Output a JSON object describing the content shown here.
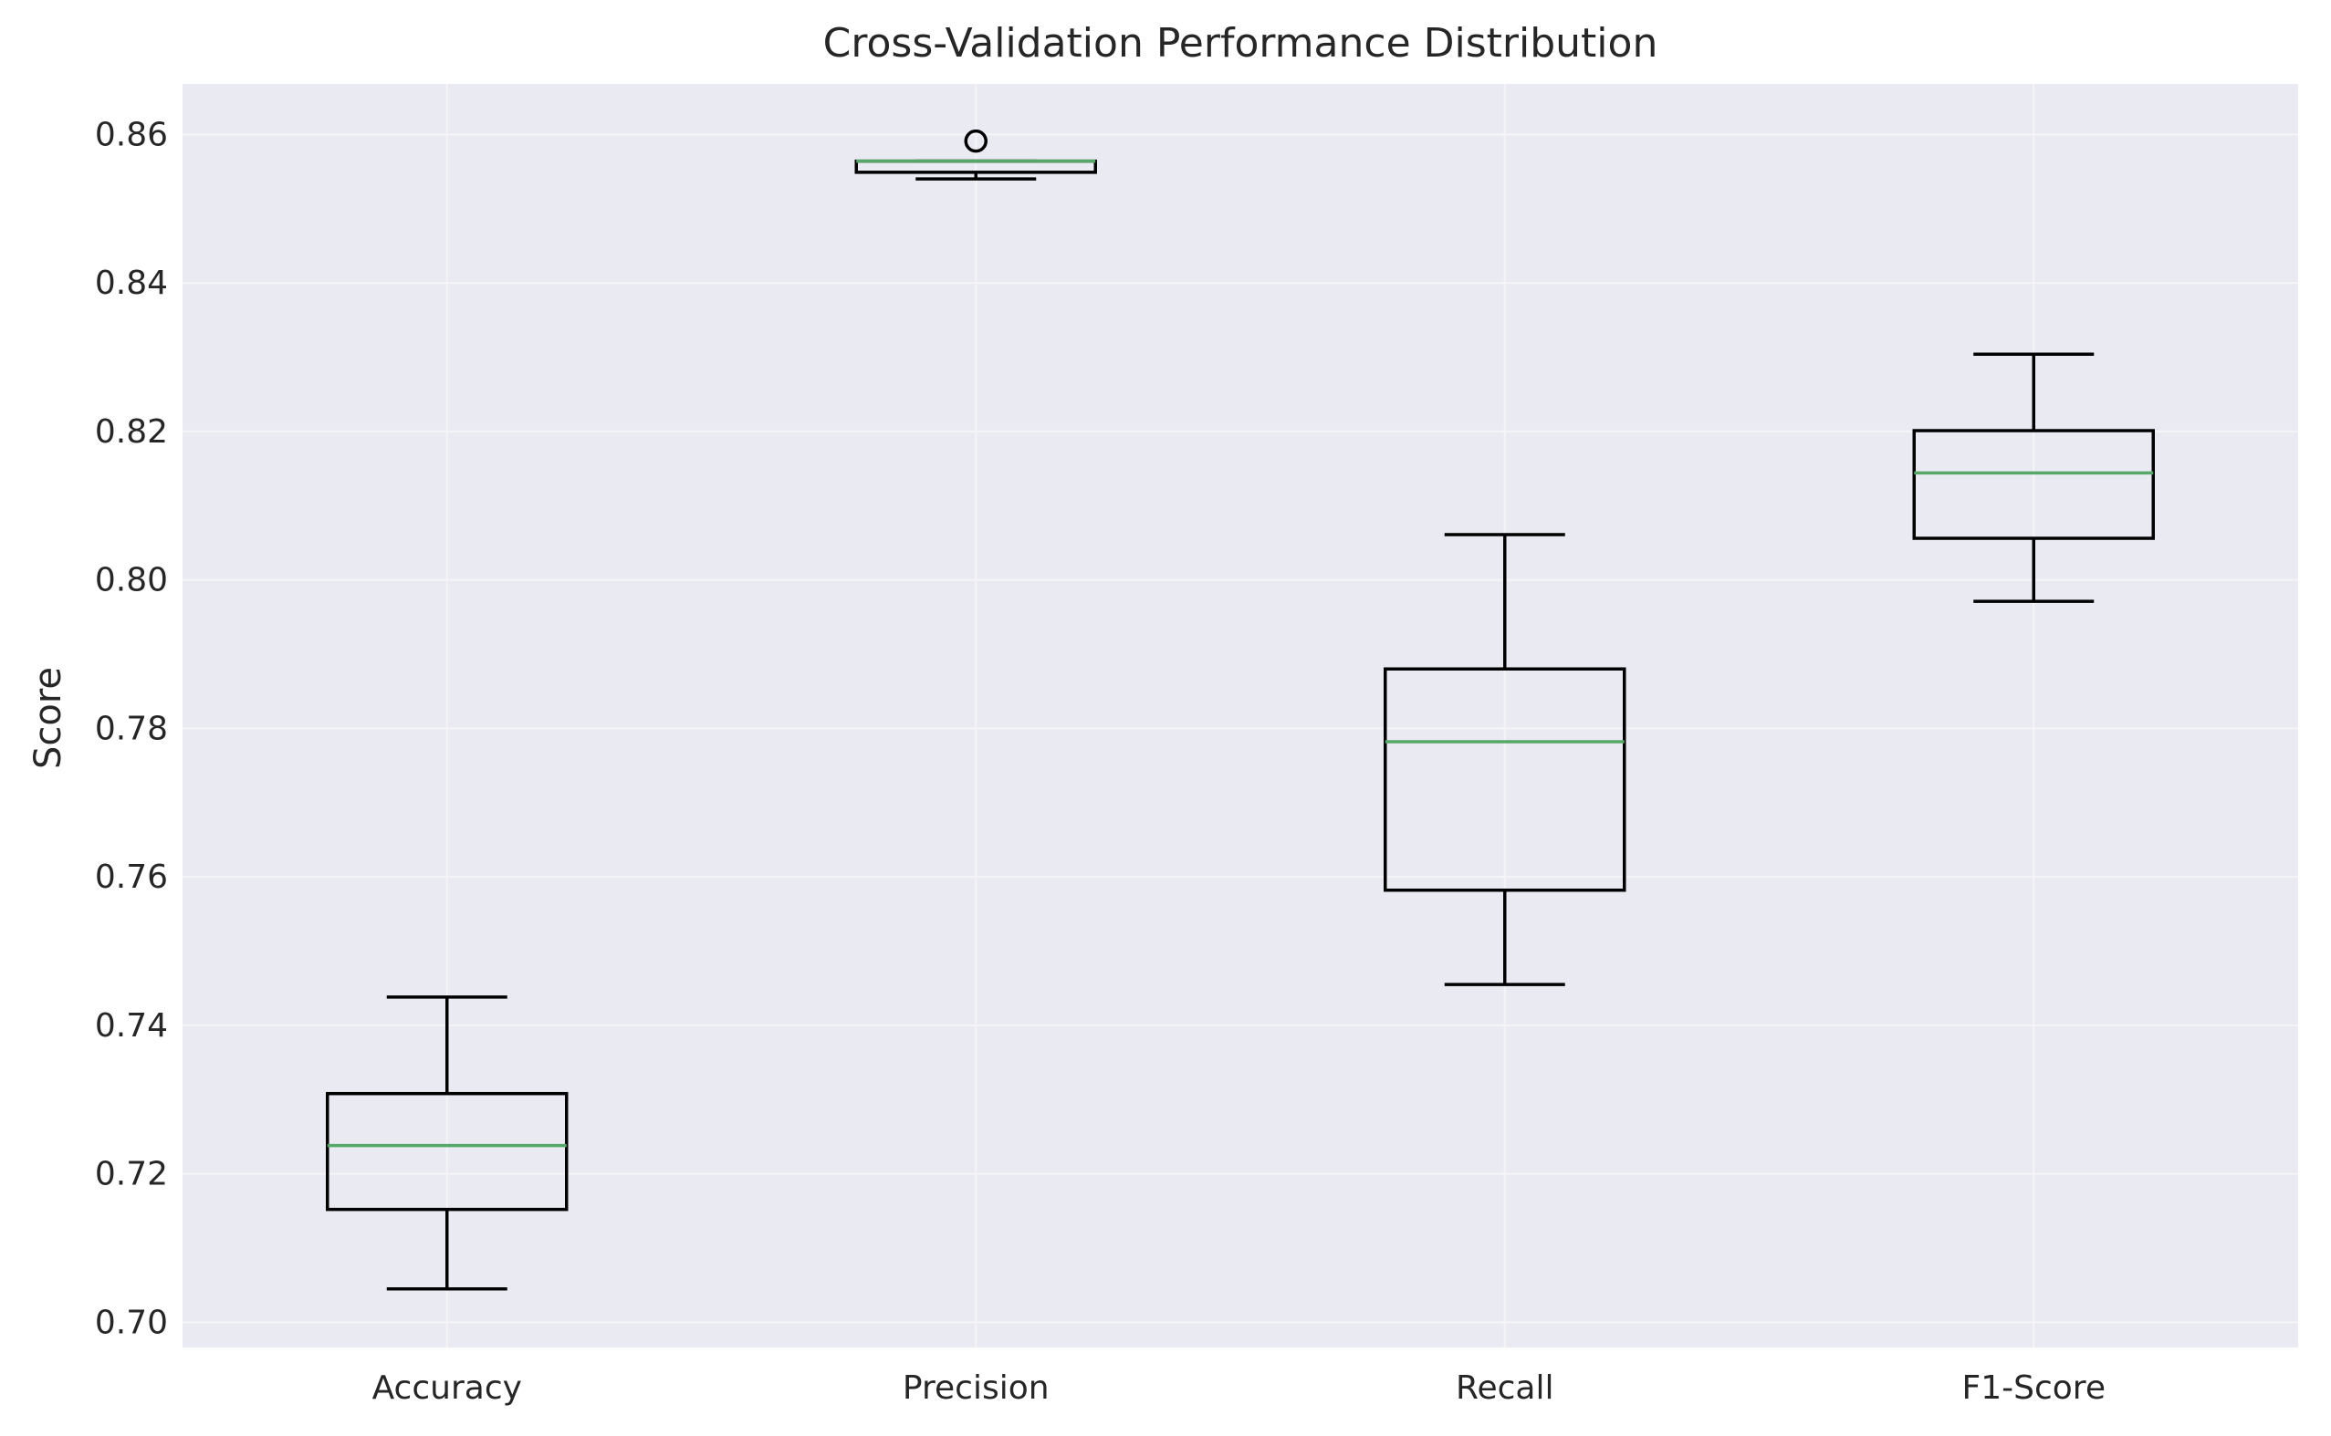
{
  "chart_data": {
    "type": "box",
    "title": "Cross-Validation Performance Distribution",
    "xlabel": "",
    "ylabel": "Score",
    "categories": [
      "Accuracy",
      "Precision",
      "Recall",
      "F1-Score"
    ],
    "boxes": [
      {
        "category": "Accuracy",
        "whisker_low": 0.7045,
        "q1": 0.7152,
        "median": 0.7238,
        "q3": 0.7308,
        "whisker_high": 0.7438,
        "outliers": []
      },
      {
        "category": "Precision",
        "whisker_low": 0.854,
        "q1": 0.8549,
        "median": 0.8564,
        "q3": 0.8564,
        "whisker_high": 0.8564,
        "outliers": [
          0.8591
        ]
      },
      {
        "category": "Recall",
        "whisker_low": 0.7455,
        "q1": 0.7582,
        "median": 0.7782,
        "q3": 0.788,
        "whisker_high": 0.8061,
        "outliers": []
      },
      {
        "category": "F1-Score",
        "whisker_low": 0.7971,
        "q1": 0.8056,
        "median": 0.8144,
        "q3": 0.8201,
        "whisker_high": 0.8304,
        "outliers": []
      }
    ],
    "ylim": [
      0.6966,
      0.8668
    ],
    "yticks": [
      0.7,
      0.72,
      0.74,
      0.76,
      0.78,
      0.8,
      0.82,
      0.84,
      0.86
    ],
    "ytick_labels": [
      "0.70",
      "0.72",
      "0.74",
      "0.76",
      "0.78",
      "0.80",
      "0.82",
      "0.84",
      "0.86"
    ],
    "grid": true,
    "colors": {
      "plot_background": "#eaeaf2",
      "grid": "#f5f5f8",
      "box_edge": "#000000",
      "median": "#55a868"
    }
  }
}
